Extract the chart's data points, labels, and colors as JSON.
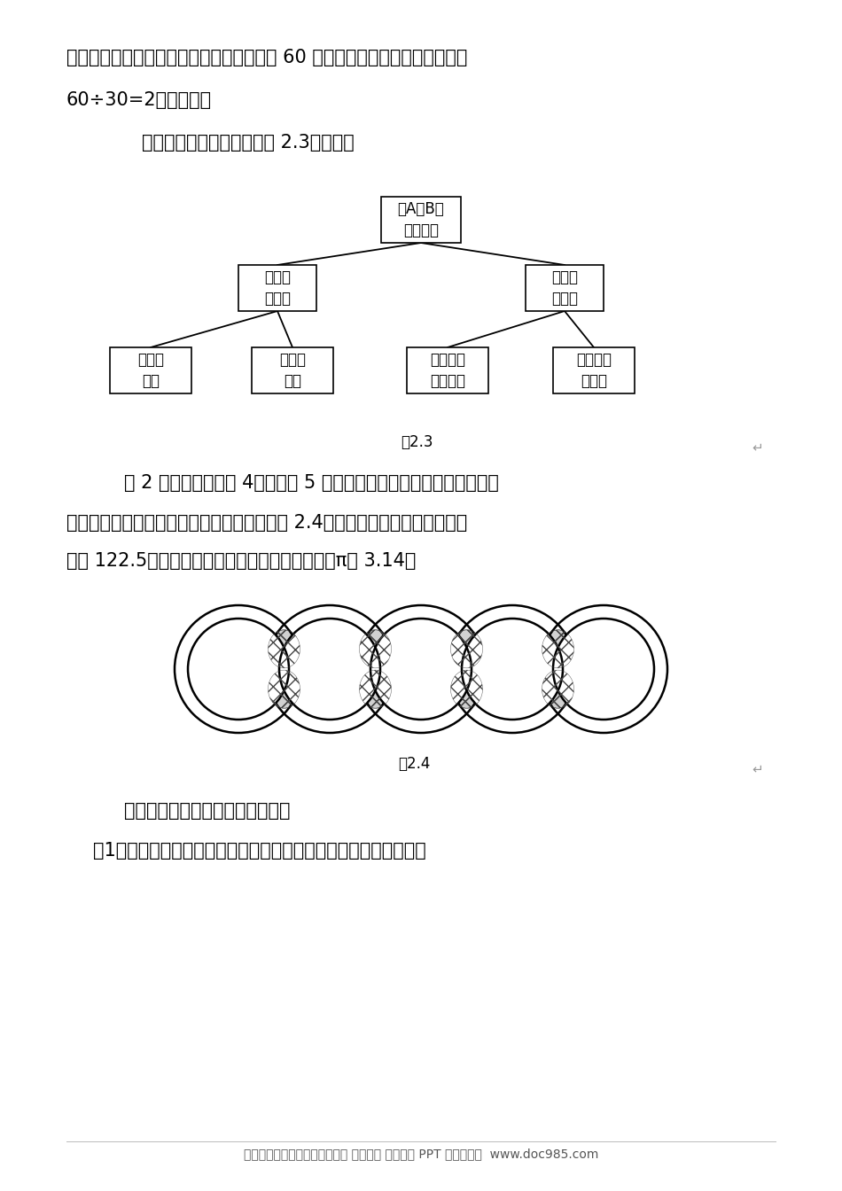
{
  "bg_color": "#ffffff",
  "text_color": "#000000",
  "line1": "时间，只是改变了相遇地点：偏离原相遇点 60 米，由此可知两船相遇的时间为",
  "line2": "60÷30=2（小时）。",
  "line3": "此分析思路可以用下图（图 2.3）表示：",
  "tree_top": "求A、B两\n地的距离",
  "tree_mid_left": "两船的\n速度和",
  "tree_mid_right": "两船相\n遇时间",
  "tree_bot_1": "甲船的\n速度",
  "tree_bot_2": "乙船的\n速度",
  "tree_bot_3": "两次相遇\n的距离差",
  "tree_bot_4": "下行船的\n速度差",
  "fig23_label": "图2.3",
  "example_text1": "例 2 五环图由内径为 4，外径为 5 的五个圆环组成，其中两两相交的小",
  "example_text2": "曲边四边形（阴影部分）的面积都相等（如图 2.4），已知五个圆环盖住的总面",
  "example_text3": "积是 122.5，求每个小曲边四边形的面积（圆周率π取 3.14）",
  "fig24_label": "图2.4",
  "analysis_text1": "分析（仳用逆向分析思路探索）：",
  "analysis_text2": "（1）要求每个小曲边四边形的面积，根据题意必须知道什么条件？",
  "footer_text": "小学、初中、高中各种试卷真题 知识归纳 文案合同 PPT 等免费下载  www.doc985.com",
  "body_fs": 15,
  "tree_fs": 12,
  "label_fs": 12,
  "footer_fs": 10
}
